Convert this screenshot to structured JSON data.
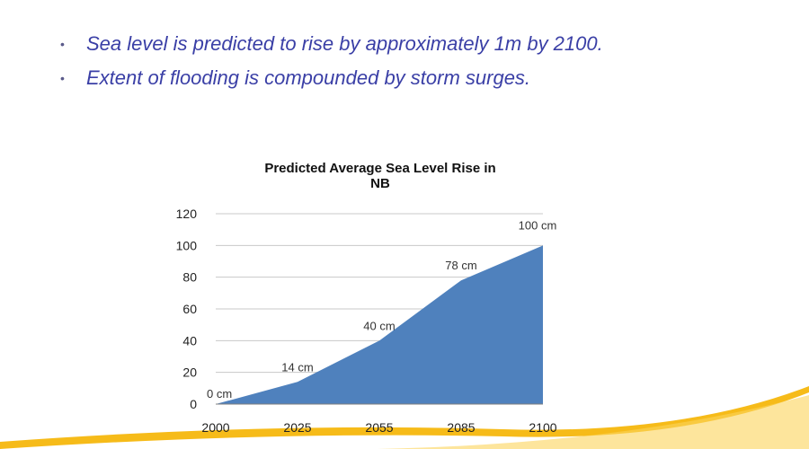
{
  "bullets": [
    "Sea level is predicted to rise by approximately 1m by 2100.",
    "Extent of flooding is compounded by storm surges."
  ],
  "colors": {
    "bullet_text": "#3a3fa6",
    "area_fill": "#4f81bd",
    "accent_swoosh": "#f5b400"
  },
  "chart_data": {
    "type": "area",
    "title_lines": [
      "Predicted Average Sea Level Rise in",
      "NB"
    ],
    "categories": [
      "2000",
      "2025",
      "2055",
      "2085",
      "2100"
    ],
    "values": [
      0,
      14,
      40,
      78,
      100
    ],
    "data_labels": [
      "0 cm",
      "14 cm",
      "40 cm",
      "78 cm",
      "100 cm"
    ],
    "ylim": [
      0,
      120
    ],
    "yticks": [
      0,
      20,
      40,
      60,
      80,
      100,
      120
    ],
    "xlabel": "",
    "ylabel": "",
    "grid": true,
    "legend": "none"
  }
}
